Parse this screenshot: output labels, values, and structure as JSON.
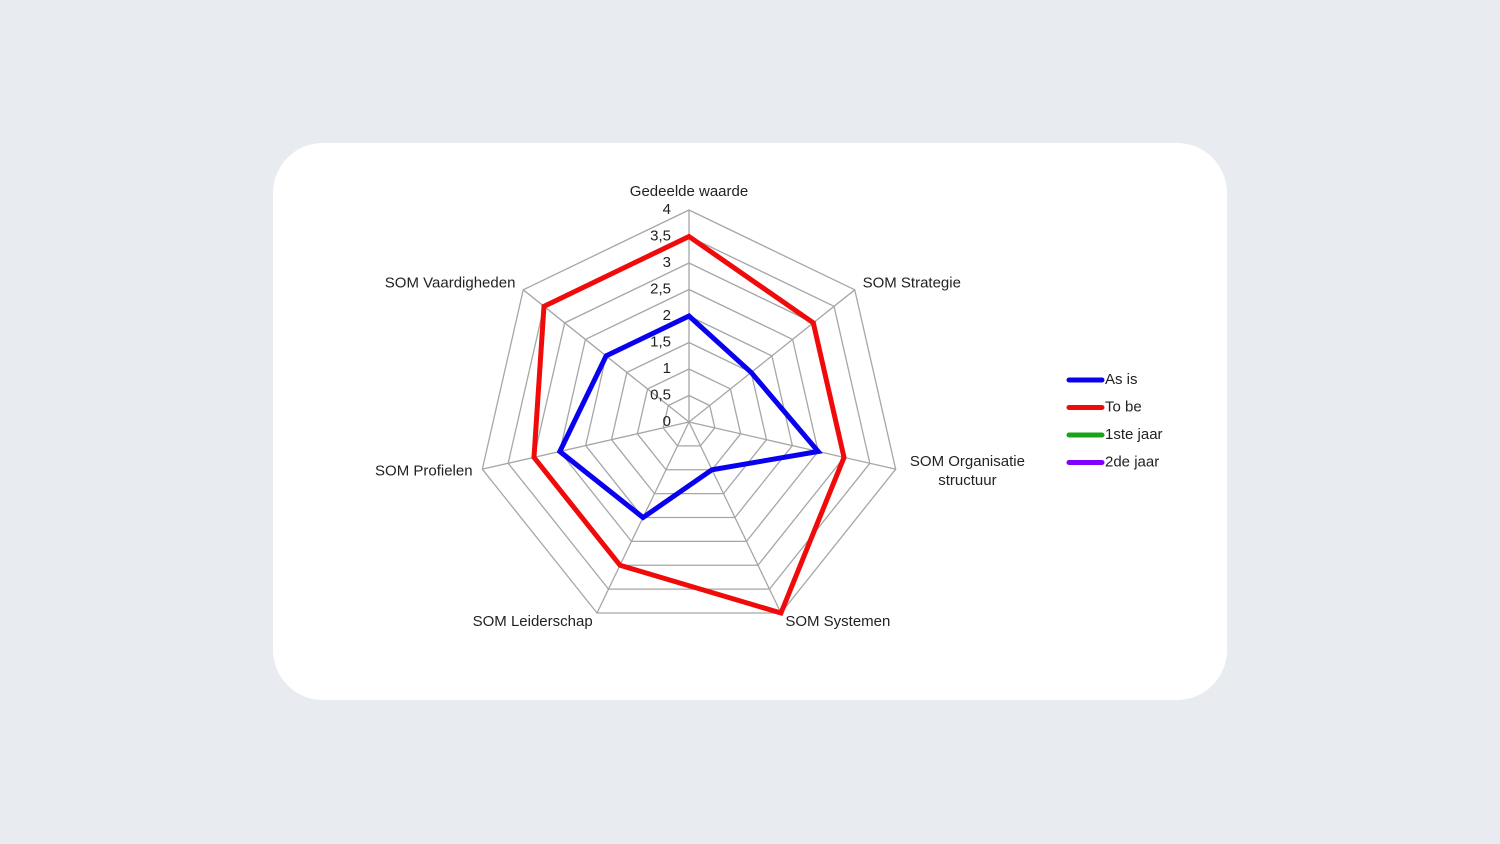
{
  "chart_data": {
    "type": "radar",
    "categories": [
      "Gedeelde waarde",
      "SOM Strategie",
      "SOM Organisatie\nstructuur",
      "SOM Systemen",
      "SOM Leiderschap",
      "SOM Profielen",
      "SOM Vaardigheden"
    ],
    "ylim": [
      0,
      4
    ],
    "yticks": [
      0,
      {
        "value": 0.5,
        "label": "0,5"
      },
      1,
      {
        "value": 1.5,
        "label": "1,5"
      },
      2,
      {
        "value": 2.5,
        "label": "2,5"
      },
      3,
      {
        "value": 3.5,
        "label": "3,5"
      },
      4
    ],
    "grid": true,
    "legend": "right",
    "series": [
      {
        "name": "As is",
        "color": "#0a00f0",
        "values": [
          2,
          1.5,
          2.5,
          1,
          2,
          2.5,
          2
        ]
      },
      {
        "name": "To be",
        "color": "#f00a0a",
        "values": [
          3.5,
          3,
          3,
          4,
          3,
          3,
          3.5
        ]
      },
      {
        "name": "1ste jaar",
        "color": "#1aa31a",
        "values": [
          null,
          null,
          null,
          null,
          null,
          null,
          null
        ]
      },
      {
        "name": "2de jaar",
        "color": "#7f00ff",
        "values": [
          null,
          null,
          null,
          null,
          null,
          null,
          null
        ]
      }
    ]
  }
}
